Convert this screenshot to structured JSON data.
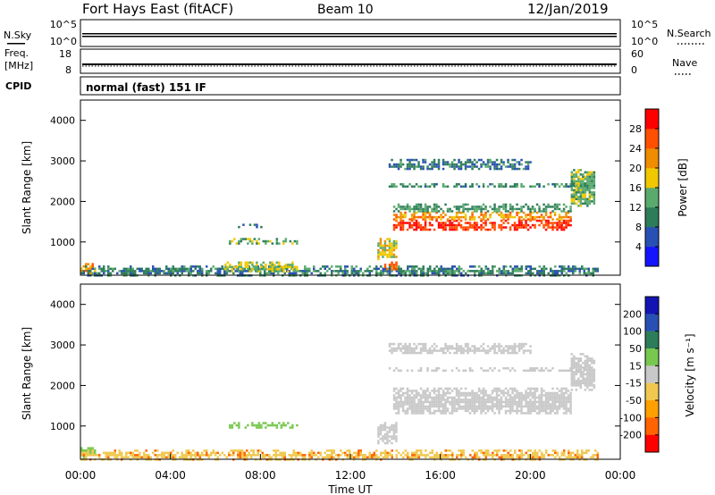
{
  "header": {
    "radar": "Fort Hays East (fitACF)",
    "beam": "Beam 10",
    "date": "12/Jan/2019"
  },
  "noise_panel": {
    "left_label": "N.Sky",
    "right_label": "N.Search",
    "left_ticks": [
      "10^5",
      "10^0"
    ],
    "right_ticks": [
      "10^5",
      "10^0"
    ]
  },
  "freq_panel": {
    "left_label_1": "Freq.",
    "left_label_2": "[MHz]",
    "right_label": "Nave",
    "left_ticks": [
      "18",
      "8"
    ],
    "right_ticks": [
      "60",
      "0"
    ]
  },
  "cpid": {
    "label": "CPID",
    "value": "normal (fast) 151 IF"
  },
  "colors": {
    "power_scale": [
      "#1414ff",
      "#2850b4",
      "#2e7d5a",
      "#5aaa6e",
      "#f0c800",
      "#f08c00",
      "#ff5000",
      "#ff0000"
    ],
    "velocity_scale": [
      "#ff0000",
      "#ff6400",
      "#ffa000",
      "#f0c850",
      "#c8c8c8",
      "#78c850",
      "#2e7d5a",
      "#2850b4",
      "#1414b4"
    ],
    "ground_scatter": "#c8c8c8"
  },
  "chart_data": [
    {
      "type": "heatmap",
      "name": "power",
      "ylabel": "Slant Range [km]",
      "ylim": [
        180,
        4500
      ],
      "yticks": [
        "1000",
        "2000",
        "3000",
        "4000"
      ],
      "xlim_hours": [
        0,
        24
      ],
      "colorbar": {
        "label": "Power [dB]",
        "ticks": [
          "4",
          "8",
          "12",
          "16",
          "20",
          "24",
          "28"
        ],
        "range": [
          0,
          32
        ]
      },
      "features": [
        {
          "t0": 0.0,
          "t1": 0.6,
          "r0": 250,
          "r1": 480,
          "level": 22
        },
        {
          "t0": 0.0,
          "t1": 23.0,
          "r0": 180,
          "r1": 420,
          "level": 10
        },
        {
          "t0": 6.6,
          "t1": 9.6,
          "r0": 950,
          "r1": 1100,
          "level": 14
        },
        {
          "t0": 7.0,
          "t1": 8.0,
          "r0": 1350,
          "r1": 1450,
          "level": 8
        },
        {
          "t0": 6.4,
          "t1": 9.6,
          "r0": 280,
          "r1": 520,
          "level": 16
        },
        {
          "t0": 13.2,
          "t1": 14.0,
          "r0": 600,
          "r1": 1100,
          "level": 18
        },
        {
          "t0": 13.5,
          "t1": 14.0,
          "r0": 300,
          "r1": 520,
          "level": 24
        },
        {
          "t0": 13.9,
          "t1": 21.8,
          "r0": 1300,
          "r1": 1550,
          "level": 28
        },
        {
          "t0": 13.9,
          "t1": 21.8,
          "r0": 1550,
          "r1": 1750,
          "level": 22
        },
        {
          "t0": 13.9,
          "t1": 21.8,
          "r0": 1750,
          "r1": 1950,
          "level": 12
        },
        {
          "t0": 13.7,
          "t1": 22.4,
          "r0": 2350,
          "r1": 2450,
          "level": 11
        },
        {
          "t0": 13.7,
          "t1": 20.0,
          "r0": 2800,
          "r1": 3050,
          "level": 9
        },
        {
          "t0": 21.8,
          "t1": 22.8,
          "r0": 1900,
          "r1": 2800,
          "level": 14
        }
      ]
    },
    {
      "type": "heatmap",
      "name": "velocity",
      "ylabel": "Slant Range [km]",
      "ylim": [
        180,
        4500
      ],
      "yticks": [
        "1000",
        "2000",
        "3000",
        "4000"
      ],
      "xlabel": "Time UT",
      "xticks": [
        "00:00",
        "04:00",
        "08:00",
        "12:00",
        "16:00",
        "20:00",
        "00:00"
      ],
      "xlim_hours": [
        0,
        24
      ],
      "colorbar": {
        "label": "Velocity [m s⁻¹]",
        "ticks": [
          "200",
          "100",
          "50",
          "15",
          "-15",
          "-50",
          "-100",
          "-200"
        ]
      },
      "features": [
        {
          "t0": 0.0,
          "t1": 0.6,
          "r0": 250,
          "r1": 480,
          "vel": 30
        },
        {
          "t0": 0.0,
          "t1": 23.0,
          "r0": 180,
          "r1": 420,
          "vel": -40
        },
        {
          "t0": 6.6,
          "t1": 9.6,
          "r0": 950,
          "r1": 1100,
          "vel": 30
        },
        {
          "t0": 13.2,
          "t1": 14.0,
          "r0": 600,
          "r1": 1100,
          "vel": 0
        },
        {
          "t0": 13.9,
          "t1": 21.8,
          "r0": 1300,
          "r1": 1950,
          "vel": 0
        },
        {
          "t0": 13.7,
          "t1": 22.4,
          "r0": 2350,
          "r1": 2450,
          "vel": 0
        },
        {
          "t0": 13.7,
          "t1": 20.0,
          "r0": 2800,
          "r1": 3050,
          "vel": 0
        },
        {
          "t0": 21.8,
          "t1": 22.8,
          "r0": 1900,
          "r1": 2800,
          "vel": 0
        }
      ]
    }
  ]
}
